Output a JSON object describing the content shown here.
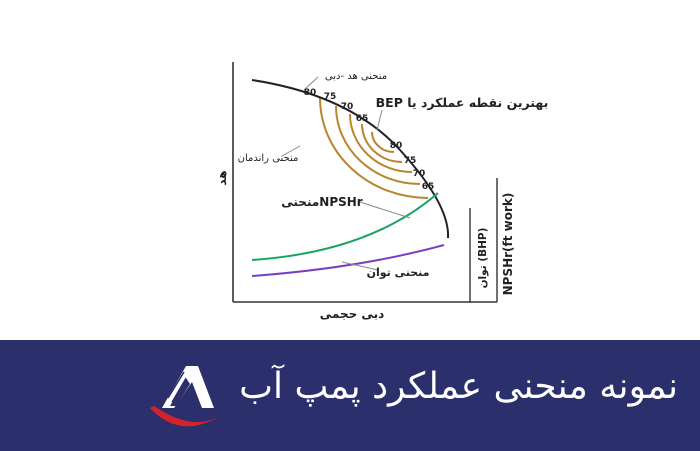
{
  "diagram": {
    "label_head_curve": "منحنی هد -دبی",
    "label_bep": "بهترین نقطه عملکرد یا BEP",
    "label_efficiency": "منحنی راندمان",
    "label_npshr": "NPSHrمنحنی",
    "label_power": "منحنی توان",
    "axis_x": "دبی حجمی",
    "axis_y": "هد",
    "axis_bhp": "توان (BHP)",
    "axis_npshr": "NPSHr(ft work)",
    "efficiency_left": [
      "80",
      "75",
      "70",
      "65"
    ],
    "efficiency_right": [
      "80",
      "75",
      "70",
      "65"
    ]
  },
  "colors": {
    "head": "#222222",
    "efficiency": "#b8862f",
    "npshr": "#19a463",
    "power": "#7a3fc2",
    "banner": "#2b2f6b",
    "logo_red": "#d6222b"
  },
  "banner": {
    "title": "نمونه منحنی عملکرد پمپ آب"
  }
}
